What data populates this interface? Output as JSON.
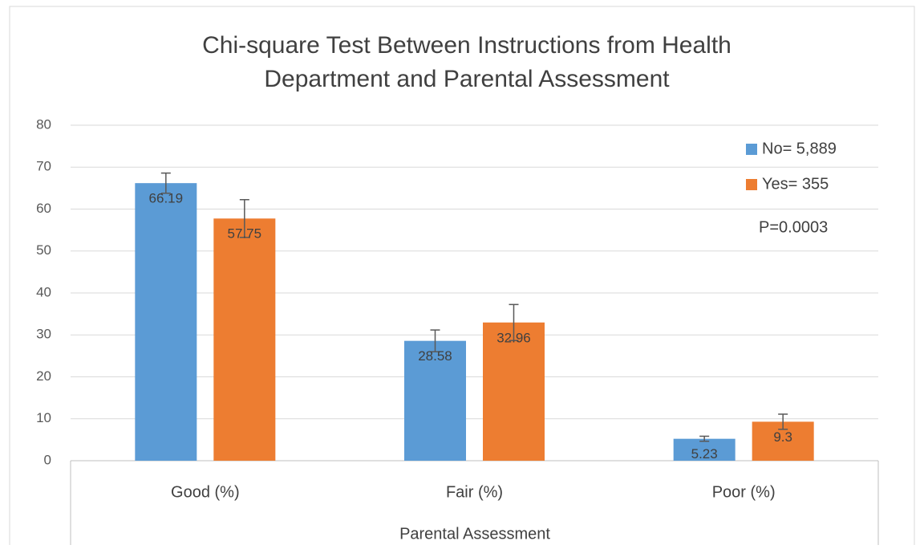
{
  "chart_data": {
    "type": "bar",
    "title": [
      "Chi-square Test Between Instructions from Health",
      "Department and Parental Assessment"
    ],
    "x_label": "Parental Assessment",
    "categories": [
      "Good (%)",
      "Fair (%)",
      "Poor (%)"
    ],
    "series": [
      {
        "name": "No= 5,889",
        "color": "#5b9bd5",
        "values": [
          66.19,
          28.58,
          5.23
        ],
        "errors": [
          2.4,
          2.6,
          0.6
        ]
      },
      {
        "name": "Yes= 355",
        "color": "#ed7d31",
        "values": [
          57.75,
          32.96,
          9.3
        ],
        "errors": [
          4.5,
          4.3,
          1.8
        ]
      }
    ],
    "annotation": "P=0.0003",
    "ylim": [
      0,
      80
    ],
    "yticks": [
      0,
      10,
      20,
      30,
      40,
      50,
      60,
      70,
      80
    ],
    "grid": true,
    "legend": "top-right"
  }
}
